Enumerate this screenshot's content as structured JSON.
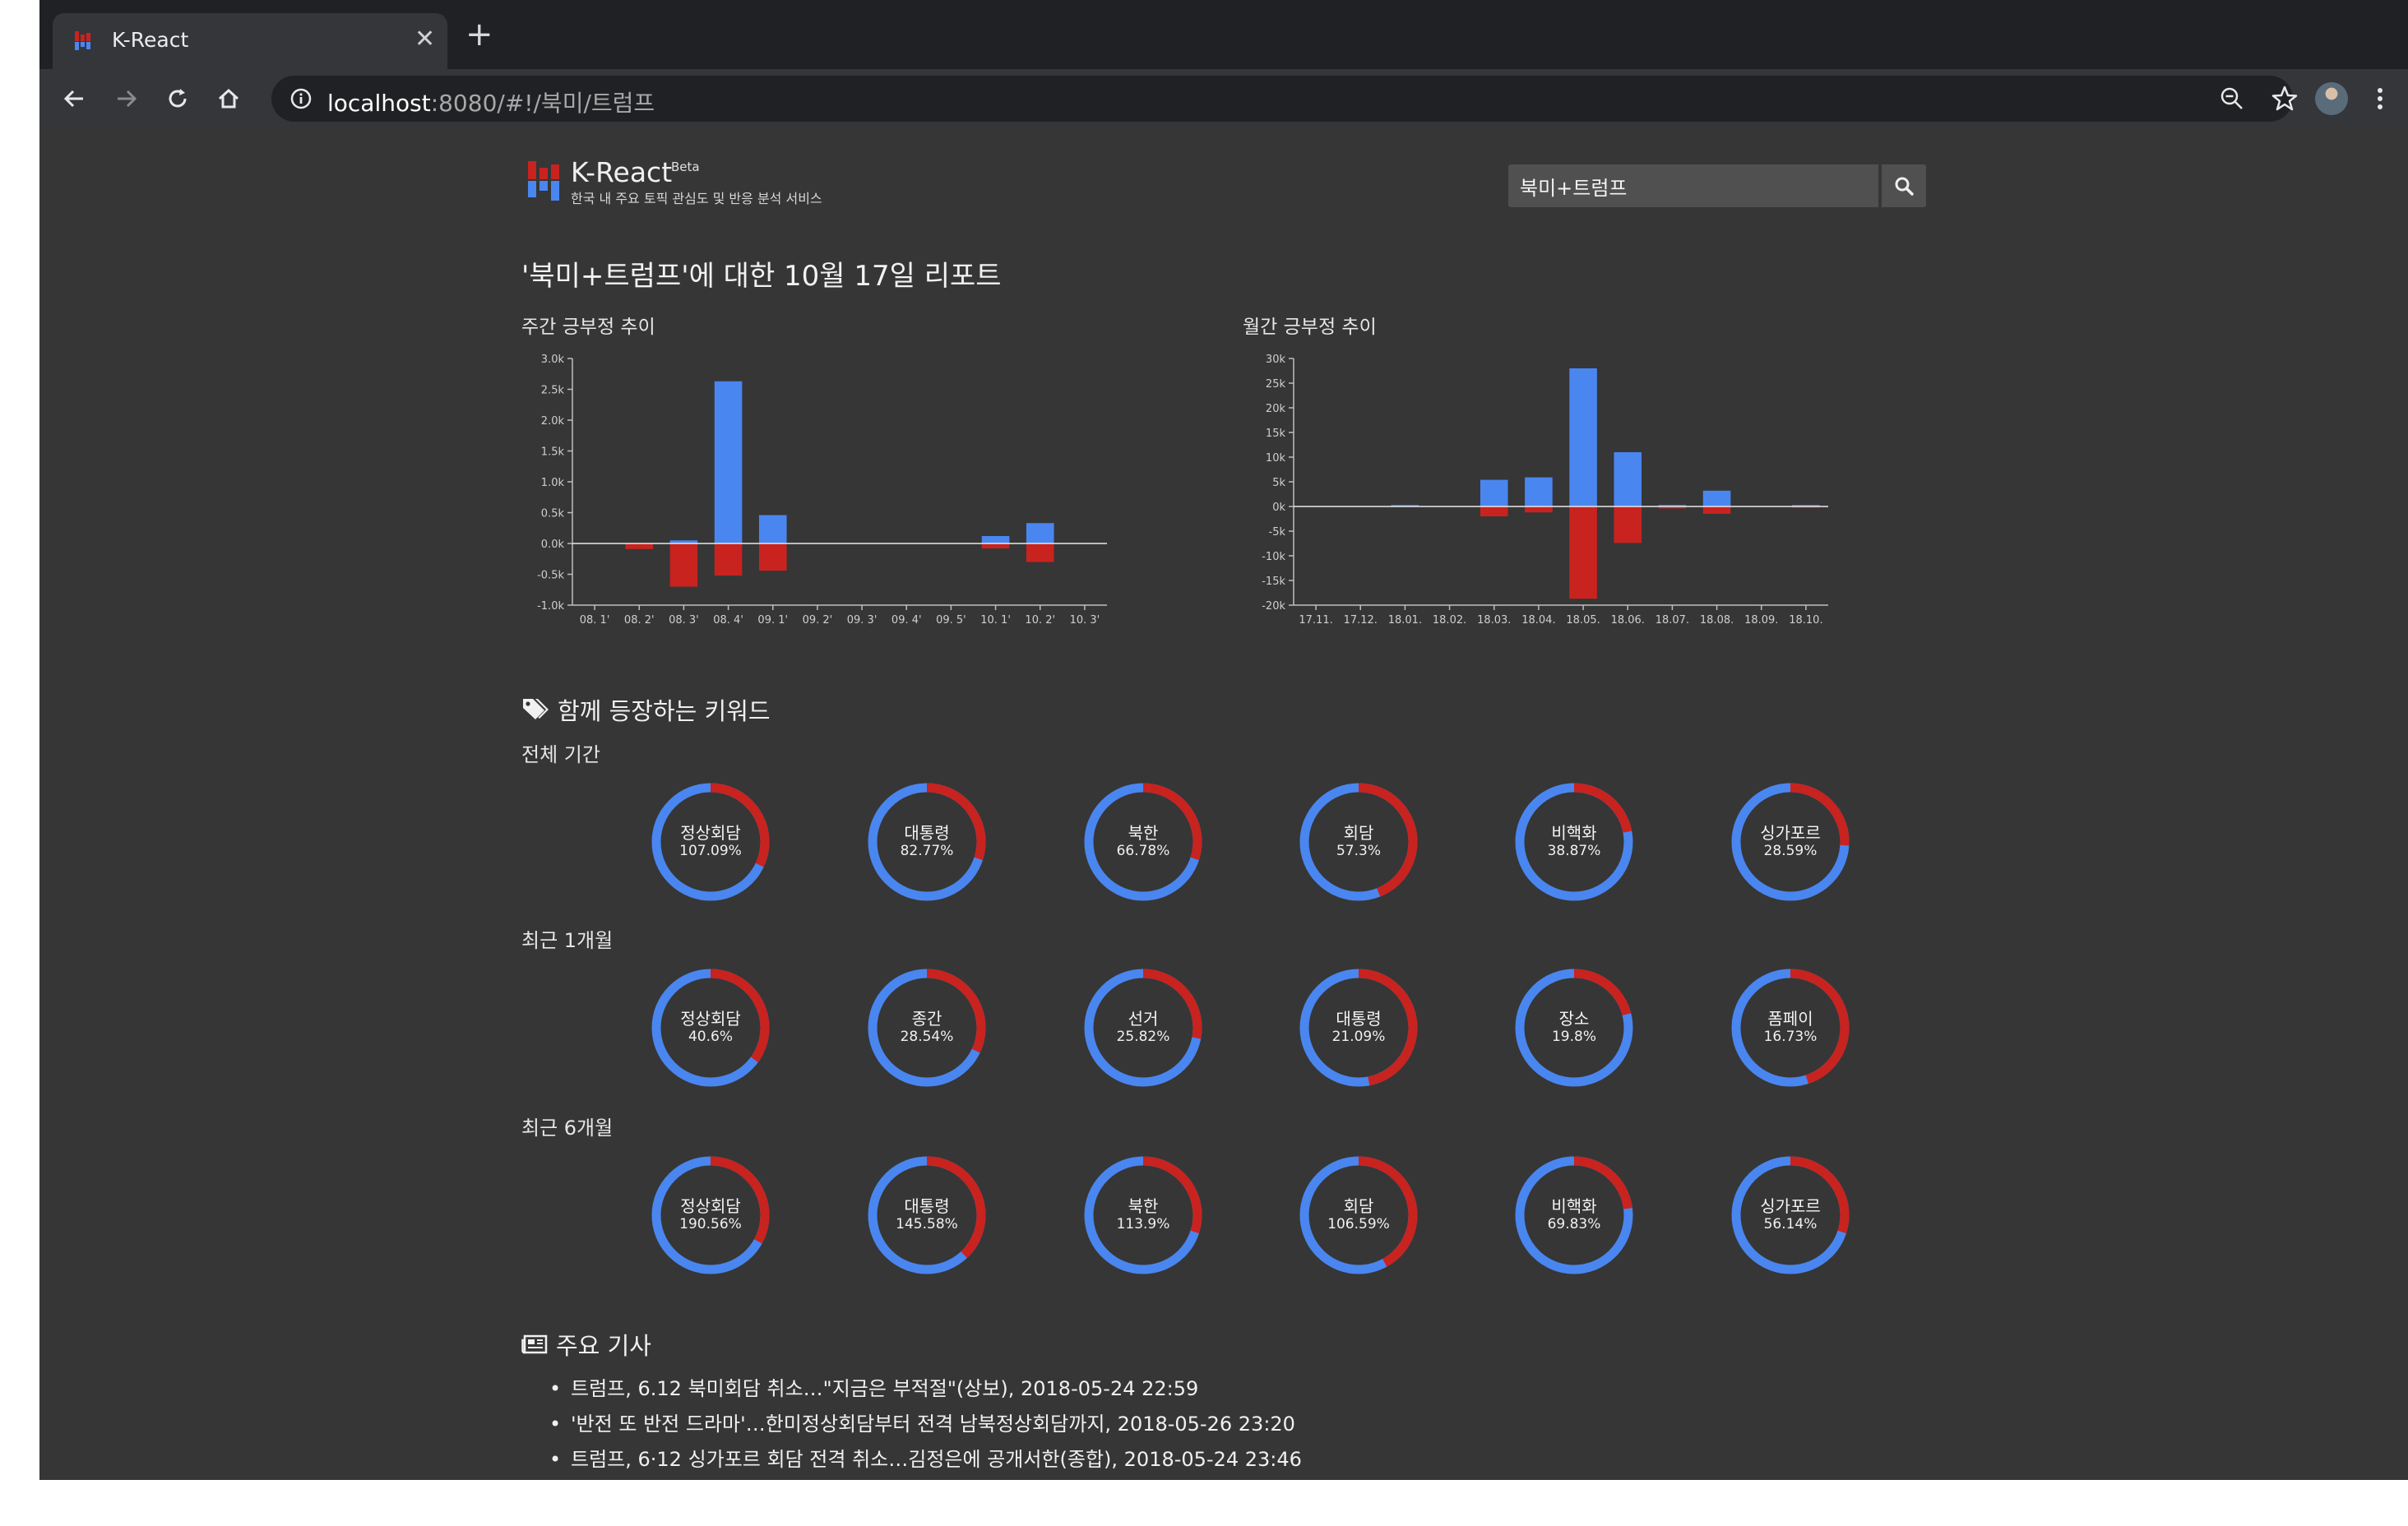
{
  "browser": {
    "tab_title": "K-React",
    "url_host": "localhost",
    "url_path": ":8080/#!/북미/트럼프"
  },
  "app": {
    "name": "K-React",
    "beta_label": "Beta",
    "subtitle": "한국 내 주요 토픽 관심도 및 반응 분석 서비스",
    "search_value": "북미+트럼프",
    "report_title": "'북미+트럼프'에 대한 10월 17일 리포트"
  },
  "colors": {
    "positive": "#4a86f0",
    "negative": "#c8231f",
    "background": "#363636"
  },
  "charts": {
    "weekly_label": "주간 긍부정 추이",
    "monthly_label": "월간 긍부정 추이"
  },
  "chart_data": [
    {
      "type": "bar",
      "title": "주간 긍부정 추이",
      "categories": [
        "08. 1'",
        "08. 2'",
        "08. 3'",
        "08. 4'",
        "09. 1'",
        "09. 2'",
        "09. 3'",
        "09. 4'",
        "09. 5'",
        "10. 1'",
        "10. 2'",
        "10. 3'"
      ],
      "series": [
        {
          "values": [
            0,
            0,
            50,
            2630,
            460,
            0,
            0,
            0,
            0,
            120,
            330,
            0
          ],
          "color": "#4a86f0"
        },
        {
          "values": [
            0,
            -90,
            -700,
            -520,
            -440,
            0,
            0,
            0,
            0,
            -80,
            -300,
            0
          ],
          "color": "#c8231f"
        }
      ],
      "ylim": [
        -1000,
        3000
      ],
      "yticks": [
        "3.0k",
        "2.5k",
        "2.0k",
        "1.5k",
        "1.0k",
        "0.5k",
        "0.0k",
        "-0.5k",
        "-1.0k"
      ],
      "ytick_values": [
        3000,
        2500,
        2000,
        1500,
        1000,
        500,
        0,
        -500,
        -1000
      ],
      "stacked": true
    },
    {
      "type": "bar",
      "title": "월간 긍부정 추이",
      "categories": [
        "17.11.",
        "17.12.",
        "18.01.",
        "18.02.",
        "18.03.",
        "18.04.",
        "18.05.",
        "18.06.",
        "18.07.",
        "18.08.",
        "18.09.",
        "18.10."
      ],
      "series": [
        {
          "values": [
            0,
            0,
            300,
            0,
            5400,
            5900,
            28000,
            11000,
            300,
            3200,
            0,
            300
          ],
          "color": "#4a86f0"
        },
        {
          "values": [
            0,
            0,
            0,
            0,
            -2000,
            -1200,
            -18700,
            -7400,
            -400,
            -1500,
            0,
            -200
          ],
          "color": "#c8231f"
        }
      ],
      "ylim": [
        -20000,
        30000
      ],
      "yticks": [
        "30k",
        "25k",
        "20k",
        "15k",
        "10k",
        "5k",
        "0k",
        "-5k",
        "-10k",
        "-15k",
        "-20k"
      ],
      "ytick_values": [
        30000,
        25000,
        20000,
        15000,
        10000,
        5000,
        0,
        -5000,
        -10000,
        -15000,
        -20000
      ],
      "stacked": true
    }
  ],
  "keywords": {
    "title": "함께 등장하는 키워드",
    "periods": [
      {
        "label": "전체 기간",
        "items": [
          {
            "keyword": "정상회담",
            "value": "107.09%",
            "negative_share": 0.32
          },
          {
            "keyword": "대통령",
            "value": "82.77%",
            "negative_share": 0.3
          },
          {
            "keyword": "북한",
            "value": "66.78%",
            "negative_share": 0.3
          },
          {
            "keyword": "회담",
            "value": "57.3%",
            "negative_share": 0.44
          },
          {
            "keyword": "비핵화",
            "value": "38.87%",
            "negative_share": 0.22
          },
          {
            "keyword": "싱가포르",
            "value": "28.59%",
            "negative_share": 0.26
          }
        ]
      },
      {
        "label": "최근 1개월",
        "items": [
          {
            "keyword": "정상회담",
            "value": "40.6%",
            "negative_share": 0.35
          },
          {
            "keyword": "종간",
            "value": "28.54%",
            "negative_share": 0.32
          },
          {
            "keyword": "선거",
            "value": "25.82%",
            "negative_share": 0.28
          },
          {
            "keyword": "대통령",
            "value": "21.09%",
            "negative_share": 0.47
          },
          {
            "keyword": "장소",
            "value": "19.8%",
            "negative_share": 0.21
          },
          {
            "keyword": "폼페이",
            "value": "16.73%",
            "negative_share": 0.45
          }
        ]
      },
      {
        "label": "최근 6개월",
        "items": [
          {
            "keyword": "정상회담",
            "value": "190.56%",
            "negative_share": 0.33
          },
          {
            "keyword": "대통령",
            "value": "145.58%",
            "negative_share": 0.38
          },
          {
            "keyword": "북한",
            "value": "113.9%",
            "negative_share": 0.3
          },
          {
            "keyword": "회담",
            "value": "106.59%",
            "negative_share": 0.42
          },
          {
            "keyword": "비핵화",
            "value": "69.83%",
            "negative_share": 0.23
          },
          {
            "keyword": "싱가포르",
            "value": "56.14%",
            "negative_share": 0.3
          }
        ]
      }
    ]
  },
  "news": {
    "title": "주요 기사",
    "items": [
      "트럼프, 6.12 북미회담 취소…\"지금은 부적절\"(상보), 2018-05-24 22:59",
      "'반전 또 반전 드라마'…한미정상회담부터 전격 남북정상회담까지, 2018-05-26 23:20",
      "트럼프, 6·12 싱가포르 회담 전격 취소…김정은에 공개서한(종합), 2018-05-24 23:46"
    ]
  }
}
